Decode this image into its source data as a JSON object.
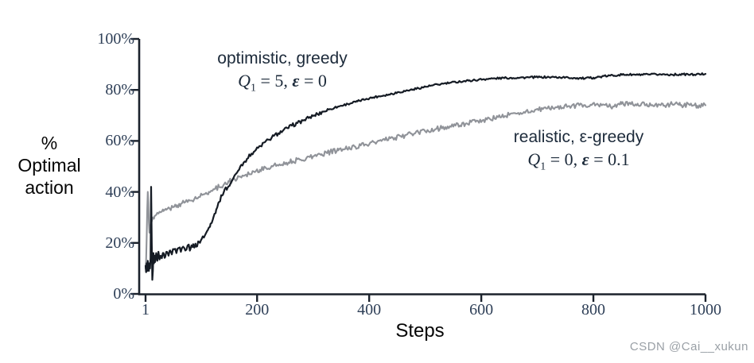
{
  "colors": {
    "axis": "#1b222c",
    "tick_label": "#2e3f57",
    "annotation_text": "#1c2a3a",
    "optimistic_curve": "#151b24",
    "realistic_curve": "#909399",
    "watermark": "#9aa0a6"
  },
  "axes": {
    "ylabel_lines": [
      "%",
      "Optimal",
      "action"
    ],
    "xlabel": "Steps",
    "yticks": [
      {
        "label": "100%",
        "value": 100
      },
      {
        "label": "80%",
        "value": 80
      },
      {
        "label": "60%",
        "value": 60
      },
      {
        "label": "40%",
        "value": 40
      },
      {
        "label": "20%",
        "value": 20
      },
      {
        "label": "0%",
        "value": 0
      }
    ],
    "xticks": [
      {
        "label": "1",
        "value": 1
      },
      {
        "label": "200",
        "value": 200
      },
      {
        "label": "400",
        "value": 400
      },
      {
        "label": "600",
        "value": 600
      },
      {
        "label": "800",
        "value": 800
      },
      {
        "label": "1000",
        "value": 1000
      }
    ]
  },
  "annotations": {
    "optimistic": {
      "line1": "optimistic, greedy",
      "q_sym": "Q",
      "q_sub": "1",
      "mid": " = 5,  ",
      "eps_sym": "ε",
      "tail": " = 0"
    },
    "realistic": {
      "line1": "realistic, ε-greedy",
      "q_sym": "Q",
      "q_sub": "1",
      "mid": " = 0,  ",
      "eps_sym": "ε",
      "tail": " = 0.1"
    }
  },
  "watermark": "CSDN @Cai__xukun",
  "chart_data": {
    "type": "line",
    "title": "",
    "xlabel": "Steps",
    "ylabel": "% Optimal action",
    "xlim": [
      1,
      1000
    ],
    "ylim": [
      0,
      100
    ],
    "grid": false,
    "legend_position": "inline-annotations",
    "series": [
      {
        "name": "optimistic, greedy (Q1 = 5, eps = 0)",
        "color": "#151b24",
        "points": [
          [
            1,
            11
          ],
          [
            2,
            8.5
          ],
          [
            3,
            12
          ],
          [
            4,
            9
          ],
          [
            5,
            13
          ],
          [
            6,
            10
          ],
          [
            7,
            9
          ],
          [
            8,
            12
          ],
          [
            9,
            10
          ],
          [
            10,
            14
          ],
          [
            11,
            42
          ],
          [
            12,
            20
          ],
          [
            13,
            5.5
          ],
          [
            14,
            9
          ],
          [
            15,
            16
          ],
          [
            16,
            12
          ],
          [
            17,
            15
          ],
          [
            18,
            12.5
          ],
          [
            20,
            16
          ],
          [
            22,
            13
          ],
          [
            24,
            16.5
          ],
          [
            26,
            13.5
          ],
          [
            28,
            15
          ],
          [
            30,
            14
          ],
          [
            33,
            16
          ],
          [
            36,
            14.5
          ],
          [
            39,
            16.5
          ],
          [
            42,
            15
          ],
          [
            45,
            17
          ],
          [
            48,
            15.5
          ],
          [
            52,
            17.5
          ],
          [
            56,
            16
          ],
          [
            60,
            18
          ],
          [
            64,
            16.5
          ],
          [
            68,
            18.5
          ],
          [
            72,
            17
          ],
          [
            76,
            19
          ],
          [
            81,
            17.5
          ],
          [
            86,
            19.5
          ],
          [
            91,
            18.5
          ],
          [
            96,
            20.5
          ],
          [
            101,
            21.5
          ],
          [
            107,
            23
          ],
          [
            112,
            25
          ],
          [
            117,
            27.5
          ],
          [
            122,
            30
          ],
          [
            127,
            33
          ],
          [
            132,
            36
          ],
          [
            137,
            38.5
          ],
          [
            142,
            41
          ],
          [
            147,
            41.5
          ],
          [
            152,
            43
          ],
          [
            158,
            45.5
          ],
          [
            164,
            47.5
          ],
          [
            170,
            50
          ],
          [
            176,
            51.5
          ],
          [
            182,
            53
          ],
          [
            190,
            55
          ],
          [
            198,
            56.5
          ],
          [
            206,
            58
          ],
          [
            214,
            59.5
          ],
          [
            222,
            60.5
          ],
          [
            230,
            62
          ],
          [
            238,
            63
          ],
          [
            246,
            64
          ],
          [
            254,
            65
          ],
          [
            262,
            66
          ],
          [
            272,
            67
          ],
          [
            282,
            68
          ],
          [
            292,
            69
          ],
          [
            300,
            69.8
          ],
          [
            308,
            70.5
          ],
          [
            318,
            71.5
          ],
          [
            328,
            72.3
          ],
          [
            338,
            73
          ],
          [
            350,
            73.8
          ],
          [
            362,
            74.5
          ],
          [
            379,
            75.5
          ],
          [
            395,
            76.5
          ],
          [
            410,
            77.2
          ],
          [
            425,
            77.8
          ],
          [
            435,
            78.2
          ],
          [
            450,
            79
          ],
          [
            465,
            79.6
          ],
          [
            478,
            80.2
          ],
          [
            495,
            81
          ],
          [
            512,
            81.7
          ],
          [
            528,
            82.3
          ],
          [
            545,
            82.8
          ],
          [
            562,
            83.3
          ],
          [
            577,
            83.6
          ],
          [
            595,
            84
          ],
          [
            610,
            84.3
          ],
          [
            625,
            84.5
          ],
          [
            645,
            84.7
          ],
          [
            665,
            84.8
          ],
          [
            685,
            84.9
          ],
          [
            705,
            85
          ],
          [
            725,
            85
          ],
          [
            745,
            84.9
          ],
          [
            765,
            84.7
          ],
          [
            785,
            84.5
          ],
          [
            800,
            84.8
          ],
          [
            815,
            85.2
          ],
          [
            830,
            85.6
          ],
          [
            845,
            85.9
          ],
          [
            860,
            86
          ],
          [
            880,
            85.9
          ],
          [
            900,
            86
          ],
          [
            920,
            86.1
          ],
          [
            940,
            86
          ],
          [
            960,
            86.1
          ],
          [
            980,
            86
          ],
          [
            1000,
            86.3
          ]
        ]
      },
      {
        "name": "realistic, eps-greedy (Q1 = 0, eps = 0.1)",
        "color": "#909399",
        "points": [
          [
            1,
            10
          ],
          [
            2,
            13
          ],
          [
            3,
            22
          ],
          [
            4,
            33
          ],
          [
            5,
            40
          ],
          [
            6,
            36
          ],
          [
            7,
            28
          ],
          [
            8,
            24
          ],
          [
            9,
            26
          ],
          [
            10,
            27
          ],
          [
            12,
            28.5
          ],
          [
            14,
            30
          ],
          [
            17,
            30.5
          ],
          [
            20,
            31
          ],
          [
            24,
            31.5
          ],
          [
            28,
            32
          ],
          [
            33,
            32.5
          ],
          [
            38,
            33
          ],
          [
            44,
            33.5
          ],
          [
            50,
            34
          ],
          [
            57,
            34.8
          ],
          [
            64,
            35.3
          ],
          [
            72,
            36
          ],
          [
            80,
            36.6
          ],
          [
            88,
            37.2
          ],
          [
            96,
            38
          ],
          [
            105,
            39
          ],
          [
            114,
            40
          ],
          [
            123,
            41
          ],
          [
            132,
            42
          ],
          [
            141,
            43
          ],
          [
            150,
            44
          ],
          [
            160,
            45
          ],
          [
            170,
            46
          ],
          [
            180,
            46.8
          ],
          [
            194,
            48
          ],
          [
            205,
            48.7
          ],
          [
            216,
            49.3
          ],
          [
            228,
            50
          ],
          [
            240,
            50.8
          ],
          [
            252,
            51.5
          ],
          [
            264,
            52
          ],
          [
            276,
            52.7
          ],
          [
            288,
            53.3
          ],
          [
            300,
            54
          ],
          [
            315,
            54.8
          ],
          [
            330,
            55.6
          ],
          [
            345,
            56.3
          ],
          [
            360,
            57
          ],
          [
            375,
            57.8
          ],
          [
            392,
            58.5
          ],
          [
            410,
            59.4
          ],
          [
            428,
            60.3
          ],
          [
            446,
            61.2
          ],
          [
            464,
            62.2
          ],
          [
            482,
            63
          ],
          [
            500,
            63.8
          ],
          [
            518,
            64.6
          ],
          [
            536,
            65.4
          ],
          [
            554,
            66
          ],
          [
            572,
            66.8
          ],
          [
            590,
            67.5
          ],
          [
            610,
            68.4
          ],
          [
            630,
            69.3
          ],
          [
            650,
            70.2
          ],
          [
            670,
            71
          ],
          [
            690,
            71.8
          ],
          [
            710,
            72.5
          ],
          [
            733,
            73.2
          ],
          [
            755,
            73.6
          ],
          [
            775,
            74
          ],
          [
            795,
            74.2
          ],
          [
            815,
            74
          ],
          [
            835,
            73.5
          ],
          [
            850,
            74.5
          ],
          [
            865,
            75
          ],
          [
            880,
            74
          ],
          [
            895,
            74.5
          ],
          [
            910,
            74.2
          ],
          [
            925,
            73.8
          ],
          [
            940,
            74.6
          ],
          [
            955,
            74
          ],
          [
            970,
            74.4
          ],
          [
            985,
            73.8
          ],
          [
            1000,
            74
          ]
        ]
      }
    ]
  }
}
